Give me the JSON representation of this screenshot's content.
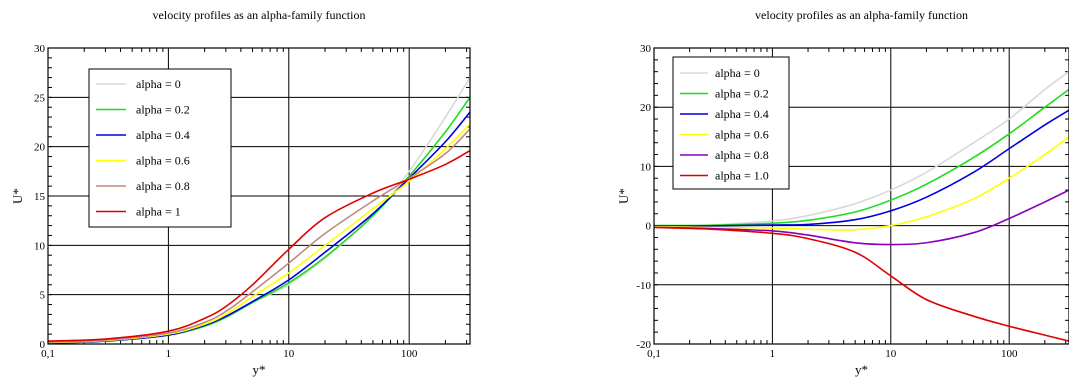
{
  "chart_data": [
    {
      "type": "line",
      "title": "velocity profiles as an alpha-family function",
      "xlabel": "y*",
      "ylabel": "U*",
      "xscale": "log",
      "xlim": [
        0.1,
        320
      ],
      "ylim": [
        0,
        30
      ],
      "xticks": [
        0.1,
        1,
        10,
        100
      ],
      "xtick_labels": [
        "0,1",
        "1",
        "10",
        "100"
      ],
      "yticks": [
        0,
        5,
        10,
        15,
        20,
        25,
        30
      ],
      "ytick_labels": [
        "0",
        "5",
        "10",
        "15",
        "20",
        "25",
        "30"
      ],
      "grid": true,
      "legend_position": "top-left",
      "series": [
        {
          "name": "alpha = 0",
          "color": "#d9d9d9",
          "x": [
            0.1,
            0.3,
            1,
            2,
            3,
            5,
            10,
            20,
            50,
            100,
            200,
            320
          ],
          "y": [
            0.1,
            0.3,
            0.9,
            1.8,
            2.7,
            4.2,
            6.0,
            8.7,
            13.0,
            17.5,
            23.0,
            27.0
          ]
        },
        {
          "name": "alpha = 0.2",
          "color": "#1edc1e",
          "x": [
            0.1,
            0.3,
            1,
            2,
            3,
            5,
            10,
            20,
            50,
            100,
            200,
            320
          ],
          "y": [
            0.1,
            0.3,
            0.9,
            1.8,
            2.7,
            4.2,
            6.2,
            8.8,
            13.0,
            17.0,
            21.5,
            25.0
          ]
        },
        {
          "name": "alpha = 0.4",
          "color": "#0000dd",
          "x": [
            0.1,
            0.3,
            1,
            2,
            3,
            5,
            10,
            20,
            50,
            100,
            200,
            320
          ],
          "y": [
            0.1,
            0.3,
            0.9,
            1.9,
            2.8,
            4.3,
            6.5,
            9.3,
            13.2,
            16.8,
            20.5,
            23.5
          ]
        },
        {
          "name": "alpha = 0.6",
          "color": "#ffff00",
          "x": [
            0.1,
            0.3,
            1,
            2,
            3,
            5,
            10,
            20,
            50,
            100,
            200,
            320
          ],
          "y": [
            0.15,
            0.35,
            1.0,
            2.0,
            3.0,
            4.8,
            7.2,
            10.0,
            13.7,
            16.5,
            19.8,
            22.3
          ]
        },
        {
          "name": "alpha = 0.8",
          "color": "#c08a7a",
          "x": [
            0.1,
            0.3,
            1,
            2,
            3,
            5,
            10,
            20,
            50,
            100,
            200,
            320
          ],
          "y": [
            0.2,
            0.4,
            1.1,
            2.2,
            3.3,
            5.3,
            8.2,
            11.2,
            14.5,
            16.8,
            19.3,
            21.8
          ]
        },
        {
          "name": "alpha = 1",
          "color": "#e00000",
          "x": [
            0.1,
            0.3,
            1,
            2,
            3,
            5,
            10,
            20,
            50,
            100,
            200,
            320
          ],
          "y": [
            0.3,
            0.5,
            1.3,
            2.6,
            3.8,
            6.0,
            9.6,
            12.8,
            15.3,
            16.7,
            18.2,
            19.6
          ]
        }
      ]
    },
    {
      "type": "line",
      "title": "velocity profiles as an alpha-family function",
      "xlabel": "y*",
      "ylabel": "U*",
      "xscale": "log",
      "xlim": [
        0.1,
        320
      ],
      "ylim": [
        -20,
        30
      ],
      "xticks": [
        0.1,
        1,
        10,
        100
      ],
      "xtick_labels": [
        "0,1",
        "1",
        "10",
        "100"
      ],
      "yticks": [
        -20,
        -10,
        0,
        10,
        20,
        30
      ],
      "ytick_labels": [
        "-20",
        "-10",
        "0",
        "10",
        "20",
        "30"
      ],
      "grid": true,
      "legend_position": "top-left",
      "series": [
        {
          "name": "alpha = 0",
          "color": "#d9d9d9",
          "x": [
            0.1,
            0.3,
            1,
            2,
            5,
            10,
            20,
            50,
            100,
            200,
            320
          ],
          "y": [
            0.0,
            0.1,
            0.8,
            1.7,
            3.7,
            6.0,
            9.0,
            14.0,
            18.0,
            23.0,
            26.0
          ]
        },
        {
          "name": "alpha = 0.2",
          "color": "#1edc1e",
          "x": [
            0.1,
            0.3,
            1,
            2,
            5,
            10,
            20,
            50,
            100,
            200,
            320
          ],
          "y": [
            0.0,
            0.05,
            0.4,
            0.9,
            2.3,
            4.3,
            7.0,
            11.5,
            15.5,
            20.0,
            23.0
          ]
        },
        {
          "name": "alpha = 0.4",
          "color": "#0000dd",
          "x": [
            0.1,
            0.3,
            1,
            2,
            5,
            10,
            20,
            50,
            100,
            200,
            320
          ],
          "y": [
            -0.1,
            -0.05,
            0.1,
            0.2,
            1.0,
            2.5,
            4.8,
            9.0,
            13.0,
            17.0,
            19.5
          ]
        },
        {
          "name": "alpha = 0.6",
          "color": "#ffff00",
          "x": [
            0.1,
            0.3,
            1,
            2,
            5,
            10,
            20,
            50,
            100,
            200,
            320
          ],
          "y": [
            -0.2,
            -0.3,
            -0.4,
            -0.6,
            -0.7,
            0.0,
            1.5,
            4.5,
            8.0,
            12.0,
            15.0
          ]
        },
        {
          "name": "alpha = 0.8",
          "color": "#8800bb",
          "x": [
            0.1,
            0.3,
            1,
            2,
            5,
            10,
            20,
            50,
            100,
            200,
            320
          ],
          "y": [
            -0.3,
            -0.5,
            -0.9,
            -1.6,
            -2.9,
            -3.2,
            -2.9,
            -1.2,
            1.2,
            4.0,
            6.0
          ]
        },
        {
          "name": "alpha = 1.0",
          "color": "#e00000",
          "x": [
            0.1,
            0.3,
            1,
            2,
            5,
            10,
            20,
            50,
            100,
            200,
            320
          ],
          "y": [
            -0.3,
            -0.6,
            -1.3,
            -2.2,
            -4.5,
            -8.5,
            -12.5,
            -15.3,
            -17.0,
            -18.5,
            -19.5
          ]
        }
      ]
    }
  ]
}
